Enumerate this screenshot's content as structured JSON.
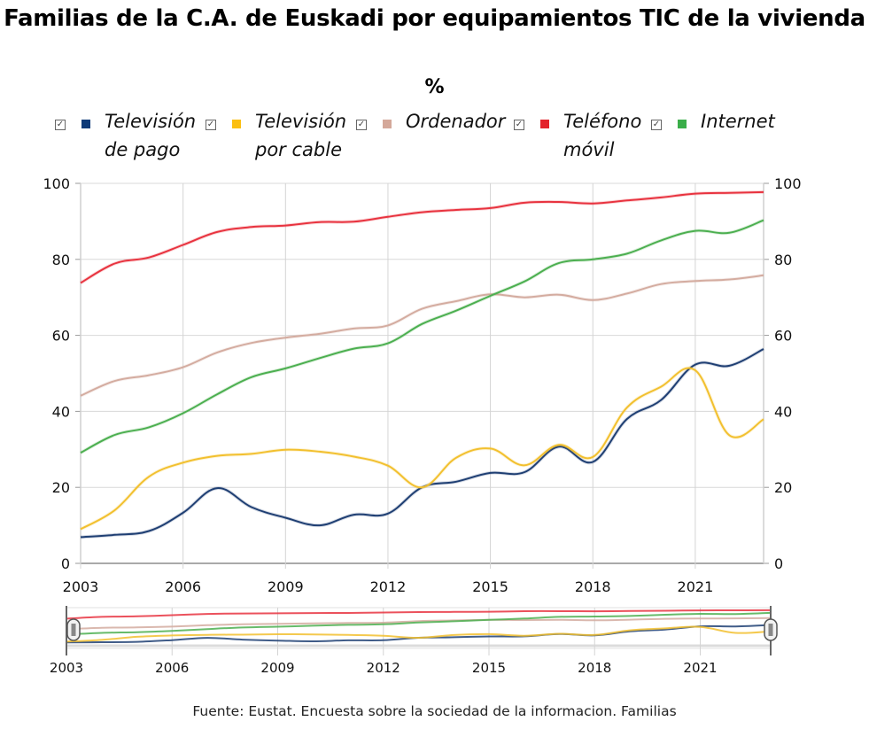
{
  "chart_data": {
    "type": "line",
    "title": "Familias de la C.A. de Euskadi por equipamientos TIC de la vivienda",
    "subtitle": "%",
    "xlabel": "",
    "ylabel": "%",
    "ylim": [
      0,
      100
    ],
    "yticks": [
      0,
      20,
      40,
      60,
      80,
      100
    ],
    "xticks": [
      2003,
      2006,
      2009,
      2012,
      2015,
      2018,
      2021
    ],
    "xlim": [
      2003,
      2023
    ],
    "grid": true,
    "legend_position": "top",
    "x": [
      2003,
      2004,
      2005,
      2006,
      2007,
      2008,
      2009,
      2010,
      2011,
      2012,
      2013,
      2014,
      2015,
      2016,
      2017,
      2018,
      2019,
      2020,
      2021,
      2022,
      2023
    ],
    "series": [
      {
        "name": "Televisión de pago",
        "label_lines": [
          "Televisión",
          "de pago"
        ],
        "color": "#1f3f73",
        "values": [
          6.9,
          7.5,
          8.5,
          13.3,
          19.8,
          14.8,
          12.0,
          10.0,
          12.8,
          13.1,
          20.0,
          21.5,
          23.8,
          24.0,
          30.7,
          26.7,
          38.0,
          43.0,
          52.3,
          52.0,
          56.4
        ]
      },
      {
        "name": "Televisión por cable",
        "label_lines": [
          "Televisión",
          "por cable"
        ],
        "color": "#f2c02f",
        "values": [
          9.0,
          14.0,
          22.8,
          26.5,
          28.3,
          28.8,
          29.9,
          29.4,
          28.1,
          25.7,
          20.0,
          27.8,
          30.2,
          25.8,
          31.2,
          28.0,
          41.0,
          46.5,
          50.8,
          33.7,
          37.9
        ]
      },
      {
        "name": "Ordenador",
        "label_lines": [
          "Ordenador"
        ],
        "color": "#d4aca0",
        "values": [
          44.1,
          48.0,
          49.5,
          51.6,
          55.5,
          58.0,
          59.4,
          60.4,
          61.8,
          62.6,
          67.0,
          69.0,
          70.8,
          70.0,
          70.7,
          69.3,
          71.0,
          73.5,
          74.3,
          74.7,
          75.8
        ]
      },
      {
        "name": "Teléfono móvil",
        "label_lines": [
          "Teléfono",
          "móvil"
        ],
        "color": "#e8333f",
        "values": [
          73.8,
          78.9,
          80.5,
          83.8,
          87.2,
          88.5,
          88.9,
          89.8,
          89.9,
          91.2,
          92.4,
          93.0,
          93.5,
          94.9,
          95.1,
          94.7,
          95.5,
          96.3,
          97.3,
          97.5,
          97.7
        ]
      },
      {
        "name": "Internet",
        "label_lines": [
          "Internet"
        ],
        "color": "#4caf50",
        "values": [
          29.1,
          33.8,
          35.8,
          39.5,
          44.5,
          49.0,
          51.3,
          54.0,
          56.5,
          57.9,
          63.0,
          66.5,
          70.4,
          74.2,
          79.0,
          80.0,
          81.5,
          85.0,
          87.5,
          87.0,
          90.3
        ]
      }
    ],
    "navigator": {
      "xticks": [
        2003,
        2006,
        2009,
        2012,
        2015,
        2018,
        2021
      ],
      "range": [
        2003,
        2023
      ]
    },
    "legend_swatch_colors": [
      "#0e3a78",
      "#fbbf12",
      "#d4a89a",
      "#e3222b",
      "#3aae49"
    ]
  },
  "legend": {
    "checkbox_glyph": "✓",
    "all_checked": true
  },
  "footer": {
    "source": "Fuente: Eustat. Encuesta sobre la sociedad de la informacion. Familias"
  }
}
